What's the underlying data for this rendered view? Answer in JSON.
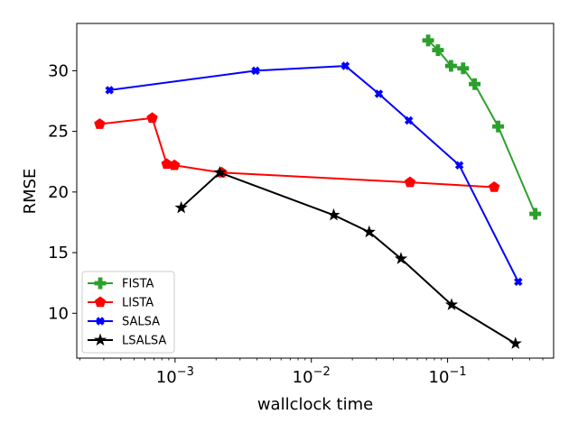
{
  "chart_data": {
    "type": "line",
    "title": "",
    "xlabel": "wallclock time",
    "ylabel": "RMSE",
    "xscale": "log",
    "xlim": [
      0.00019,
      0.6
    ],
    "ylim": [
      6.3,
      33.9
    ],
    "grid": false,
    "legend_position": "lower-left",
    "x_ticks": [
      {
        "value": 0.001,
        "label": "10",
        "exp": "−3"
      },
      {
        "value": 0.01,
        "label": "10",
        "exp": "−2"
      },
      {
        "value": 0.1,
        "label": "10",
        "exp": "−1"
      }
    ],
    "y_ticks": [
      10,
      15,
      20,
      25,
      30
    ],
    "series": [
      {
        "name": "FISTA",
        "color": "#2ca02c",
        "marker": "plus",
        "x": [
          0.072,
          0.085,
          0.106,
          0.13,
          0.158,
          0.235,
          0.44
        ],
        "y": [
          32.5,
          31.7,
          30.4,
          30.2,
          28.9,
          25.4,
          18.2
        ]
      },
      {
        "name": "LISTA",
        "color": "#ff0000",
        "marker": "pentagon",
        "x": [
          0.00028,
          0.00068,
          0.00087,
          0.00099,
          0.0022,
          0.053,
          0.22
        ],
        "y": [
          25.6,
          26.1,
          22.3,
          22.2,
          21.6,
          20.8,
          20.4
        ]
      },
      {
        "name": "SALSA",
        "color": "#0000ff",
        "marker": "x",
        "x": [
          0.00033,
          0.0039,
          0.0178,
          0.0313,
          0.052,
          0.122,
          0.33
        ],
        "y": [
          28.4,
          30.0,
          30.4,
          28.1,
          25.9,
          22.2,
          12.6
        ]
      },
      {
        "name": "LSALSA",
        "color": "#000000",
        "marker": "star",
        "x": [
          0.00111,
          0.00213,
          0.0146,
          0.0266,
          0.0455,
          0.107,
          0.315
        ],
        "y": [
          18.7,
          21.6,
          18.1,
          16.7,
          14.5,
          10.7,
          7.5
        ]
      }
    ]
  }
}
